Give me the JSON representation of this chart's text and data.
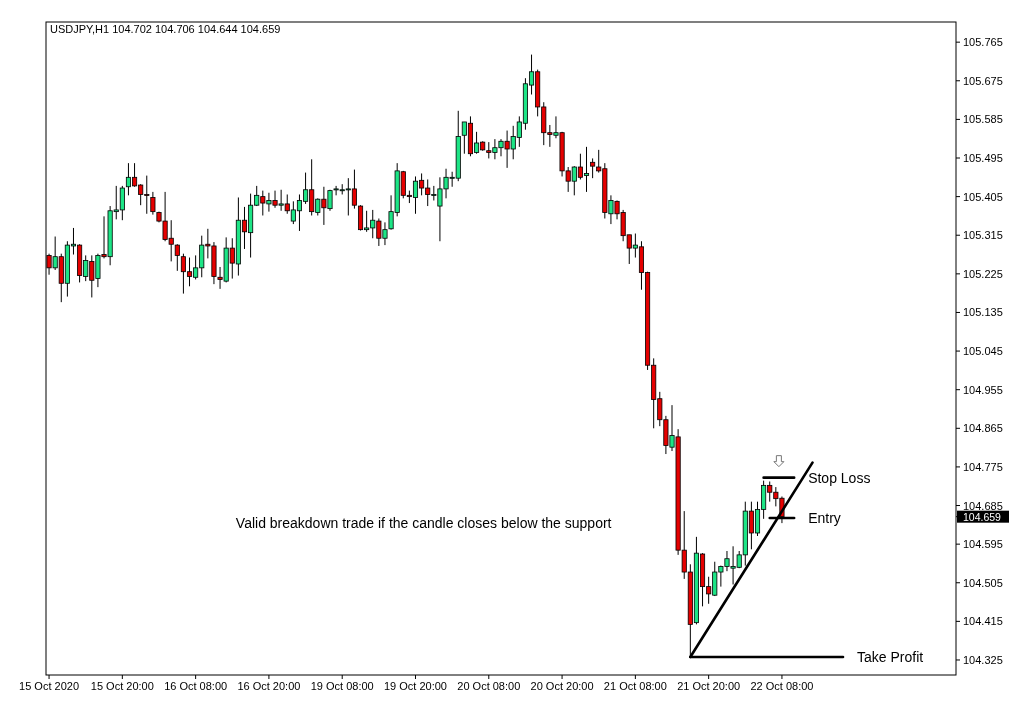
{
  "chart_data": {
    "type": "candlestick",
    "title": "USDJPY,H1 104.702 104.706 104.644 104.659",
    "categories": [
      "15 Oct 2020",
      null,
      null,
      null,
      null,
      null,
      null,
      null,
      null,
      null,
      null,
      null,
      "15 Oct 20:00",
      null,
      null,
      null,
      null,
      null,
      null,
      null,
      null,
      null,
      null,
      null,
      "16 Oct 08:00",
      null,
      null,
      null,
      null,
      null,
      null,
      null,
      null,
      null,
      null,
      null,
      "16 Oct 20:00",
      null,
      null,
      null,
      null,
      null,
      null,
      null,
      null,
      null,
      null,
      null,
      "19 Oct 08:00",
      null,
      null,
      null,
      null,
      null,
      null,
      null,
      null,
      null,
      null,
      null,
      "19 Oct 20:00",
      null,
      null,
      null,
      null,
      null,
      null,
      null,
      null,
      null,
      null,
      null,
      "20 Oct 08:00",
      null,
      null,
      null,
      null,
      null,
      null,
      null,
      null,
      null,
      null,
      null,
      "20 Oct 20:00",
      null,
      null,
      null,
      null,
      null,
      null,
      null,
      null,
      null,
      null,
      null,
      "21 Oct 08:00",
      null,
      null,
      null,
      null,
      null,
      null,
      null,
      null,
      null,
      null,
      null,
      "21 Oct 20:00",
      null,
      null,
      null,
      null,
      null,
      null,
      null,
      null,
      null,
      null,
      null,
      "22 Oct 08:00",
      null,
      null,
      null,
      null,
      null,
      null,
      null,
      null,
      null,
      null,
      null,
      null,
      null,
      null,
      null,
      null,
      null,
      null,
      null,
      null,
      null,
      null,
      null,
      null,
      null,
      null,
      null,
      null
    ],
    "ohlc": [
      [
        105.268,
        105.272,
        105.223,
        105.239
      ],
      [
        105.239,
        105.312,
        105.234,
        105.265
      ],
      [
        105.265,
        105.272,
        105.159,
        105.203
      ],
      [
        105.203,
        105.301,
        105.172,
        105.292
      ],
      [
        105.29,
        105.332,
        105.27,
        105.294
      ],
      [
        105.292,
        105.294,
        105.205,
        105.221
      ],
      [
        105.219,
        105.268,
        105.208,
        105.256
      ],
      [
        105.254,
        105.268,
        105.17,
        105.21
      ],
      [
        105.214,
        105.272,
        105.194,
        105.268
      ],
      [
        105.27,
        105.359,
        105.261,
        105.265
      ],
      [
        105.265,
        105.383,
        105.245,
        105.372
      ],
      [
        105.37,
        105.43,
        105.352,
        105.374
      ],
      [
        105.374,
        105.43,
        105.35,
        105.425
      ],
      [
        105.428,
        105.483,
        105.408,
        105.45
      ],
      [
        105.45,
        105.483,
        105.428,
        105.43
      ],
      [
        105.432,
        105.434,
        105.385,
        105.41
      ],
      [
        105.41,
        105.454,
        105.365,
        105.408
      ],
      [
        105.403,
        105.416,
        105.363,
        105.37
      ],
      [
        105.368,
        105.37,
        105.345,
        105.348
      ],
      [
        105.348,
        105.416,
        105.301,
        105.305
      ],
      [
        105.308,
        105.35,
        105.254,
        105.294
      ],
      [
        105.292,
        105.294,
        105.232,
        105.268
      ],
      [
        105.265,
        105.272,
        105.179,
        105.23
      ],
      [
        105.23,
        105.263,
        105.196,
        105.219
      ],
      [
        105.217,
        105.268,
        105.212,
        105.239
      ],
      [
        105.239,
        105.314,
        105.217,
        105.292
      ],
      [
        105.294,
        105.33,
        105.261,
        105.29
      ],
      [
        105.29,
        105.299,
        105.201,
        105.219
      ],
      [
        105.217,
        105.241,
        105.19,
        105.212
      ],
      [
        105.208,
        105.31,
        105.205,
        105.285
      ],
      [
        105.285,
        105.308,
        105.214,
        105.25
      ],
      [
        105.248,
        105.403,
        105.221,
        105.35
      ],
      [
        105.35,
        105.381,
        105.283,
        105.323
      ],
      [
        105.321,
        105.412,
        105.263,
        105.385
      ],
      [
        105.385,
        105.43,
        105.383,
        105.408
      ],
      [
        105.405,
        105.419,
        105.361,
        105.39
      ],
      [
        105.388,
        105.414,
        105.37,
        105.396
      ],
      [
        105.396,
        105.419,
        105.379,
        105.385
      ],
      [
        105.385,
        105.421,
        105.372,
        105.388
      ],
      [
        105.388,
        105.41,
        105.365,
        105.372
      ],
      [
        105.348,
        105.394,
        105.341,
        105.374
      ],
      [
        105.372,
        105.41,
        105.325,
        105.396
      ],
      [
        105.394,
        105.461,
        105.388,
        105.421
      ],
      [
        105.421,
        105.492,
        105.361,
        105.37
      ],
      [
        105.368,
        105.401,
        105.361,
        105.399
      ],
      [
        105.399,
        105.428,
        105.339,
        105.379
      ],
      [
        105.377,
        105.421,
        105.372,
        105.419
      ],
      [
        105.421,
        105.43,
        105.408,
        105.423
      ],
      [
        105.419,
        105.434,
        105.41,
        105.421
      ],
      [
        105.421,
        105.448,
        105.361,
        105.423
      ],
      [
        105.423,
        105.468,
        105.377,
        105.385
      ],
      [
        105.383,
        105.385,
        105.326,
        105.328
      ],
      [
        105.328,
        105.372,
        105.323,
        105.332
      ],
      [
        105.332,
        105.374,
        105.308,
        105.35
      ],
      [
        105.348,
        105.354,
        105.29,
        105.308
      ],
      [
        105.308,
        105.345,
        105.292,
        105.328
      ],
      [
        105.33,
        105.408,
        105.328,
        105.37
      ],
      [
        105.368,
        105.483,
        105.359,
        105.465
      ],
      [
        105.463,
        105.465,
        105.401,
        105.408
      ],
      [
        105.408,
        105.419,
        105.39,
        105.405
      ],
      [
        105.403,
        105.452,
        105.365,
        105.441
      ],
      [
        105.443,
        105.459,
        105.408,
        105.425
      ],
      [
        105.425,
        105.445,
        105.383,
        105.41
      ],
      [
        105.41,
        105.43,
        105.396,
        105.41
      ],
      [
        105.383,
        105.45,
        105.301,
        105.423
      ],
      [
        105.423,
        105.47,
        105.401,
        105.45
      ],
      [
        105.45,
        105.463,
        105.428,
        105.45
      ],
      [
        105.448,
        105.605,
        105.441,
        105.545
      ],
      [
        105.548,
        105.579,
        105.505,
        105.579
      ],
      [
        105.576,
        105.592,
        105.499,
        105.505
      ],
      [
        105.508,
        105.556,
        105.505,
        105.53
      ],
      [
        105.532,
        105.534,
        105.512,
        105.514
      ],
      [
        105.512,
        105.532,
        105.494,
        105.508
      ],
      [
        105.508,
        105.539,
        105.492,
        105.519
      ],
      [
        105.519,
        105.539,
        105.499,
        105.534
      ],
      [
        105.534,
        105.559,
        105.472,
        105.516
      ],
      [
        105.516,
        105.57,
        105.492,
        105.545
      ],
      [
        105.543,
        105.592,
        105.521,
        105.579
      ],
      [
        105.576,
        105.681,
        105.561,
        105.668
      ],
      [
        105.665,
        105.736,
        105.643,
        105.696
      ],
      [
        105.696,
        105.701,
        105.592,
        105.614
      ],
      [
        105.614,
        105.625,
        105.525,
        105.554
      ],
      [
        105.554,
        105.572,
        105.521,
        105.55
      ],
      [
        105.548,
        105.592,
        105.541,
        105.554
      ],
      [
        105.554,
        105.556,
        105.452,
        105.465
      ],
      [
        105.465,
        105.474,
        105.416,
        105.441
      ],
      [
        105.441,
        105.476,
        105.408,
        105.474
      ],
      [
        105.474,
        105.505,
        105.445,
        105.45
      ],
      [
        105.454,
        105.521,
        105.416,
        105.459
      ],
      [
        105.485,
        105.494,
        105.448,
        105.476
      ],
      [
        105.474,
        105.514,
        105.461,
        105.465
      ],
      [
        105.47,
        105.483,
        105.354,
        105.368
      ],
      [
        105.365,
        105.408,
        105.341,
        105.396
      ],
      [
        105.394,
        105.396,
        105.352,
        105.365
      ],
      [
        105.368,
        105.374,
        105.301,
        105.314
      ],
      [
        105.316,
        105.316,
        105.248,
        105.285
      ],
      [
        105.285,
        105.319,
        105.263,
        105.292
      ],
      [
        105.288,
        105.301,
        105.188,
        105.228
      ],
      [
        105.228,
        105.23,
        105.001,
        105.012
      ],
      [
        105.012,
        105.028,
        104.865,
        104.932
      ],
      [
        104.934,
        104.95,
        104.87,
        104.885
      ],
      [
        104.885,
        104.894,
        104.805,
        104.825
      ],
      [
        104.821,
        104.919,
        104.812,
        104.848
      ],
      [
        104.845,
        104.863,
        104.57,
        104.581
      ],
      [
        104.581,
        104.672,
        104.514,
        104.53
      ],
      [
        104.53,
        104.548,
        104.33,
        104.408
      ],
      [
        104.412,
        104.612,
        104.408,
        104.574
      ],
      [
        104.572,
        104.574,
        104.45,
        104.496
      ],
      [
        104.496,
        104.519,
        104.456,
        104.479
      ],
      [
        104.476,
        104.554,
        104.474,
        104.53
      ],
      [
        104.53,
        104.545,
        104.496,
        104.543
      ],
      [
        104.543,
        104.579,
        104.532,
        104.561
      ],
      [
        104.539,
        104.59,
        104.501,
        104.543
      ],
      [
        104.541,
        104.579,
        104.539,
        104.57
      ],
      [
        104.57,
        104.694,
        104.545,
        104.672
      ],
      [
        104.672,
        104.694,
        104.583,
        104.621
      ],
      [
        104.621,
        104.694,
        104.614,
        104.676
      ],
      [
        104.676,
        104.743,
        104.654,
        104.732
      ],
      [
        104.732,
        104.741,
        104.694,
        104.716
      ],
      [
        104.716,
        104.728,
        104.683,
        104.701
      ],
      [
        104.702,
        104.706,
        104.644,
        104.659
      ],
      null,
      null,
      null,
      null,
      null,
      null,
      null,
      null,
      null,
      null,
      null,
      null,
      null,
      null,
      null,
      null,
      null,
      null,
      null,
      null,
      null,
      null,
      null,
      null,
      null,
      null,
      null,
      null
    ],
    "colors": [
      "#e50000",
      "#1de586",
      "#e50000",
      "#1de586",
      "#1de586",
      "#e50000",
      "#1de586",
      "#e50000",
      "#1de586",
      "#e50000",
      "#1de586",
      "#1de586",
      "#1de586",
      "#1de586",
      "#e50000",
      "#e50000",
      "#e50000",
      "#e50000",
      "#e50000",
      "#e50000",
      "#e50000",
      "#e50000",
      "#e50000",
      "#e50000",
      "#1de586",
      "#1de586",
      "#e50000",
      "#e50000",
      "#e50000",
      "#1de586",
      "#e50000",
      "#1de586",
      "#e50000",
      "#1de586",
      "#1de586",
      "#e50000",
      "#1de586",
      "#e50000",
      "#1de586",
      "#e50000",
      "#1de586",
      "#1de586",
      "#1de586",
      "#e50000",
      "#1de586",
      "#e50000",
      "#1de586",
      "#1de586",
      "#1de586",
      "#1de586",
      "#e50000",
      "#e50000",
      "#1de586",
      "#1de586",
      "#e50000",
      "#1de586",
      "#1de586",
      "#1de586",
      "#e50000",
      "#e50000",
      "#1de586",
      "#e50000",
      "#e50000",
      "#1de586",
      "#1de586",
      "#1de586",
      "#1de586",
      "#1de586",
      "#1de586",
      "#e50000",
      "#1de586",
      "#e50000",
      "#e50000",
      "#1de586",
      "#1de586",
      "#e50000",
      "#1de586",
      "#1de586",
      "#1de586",
      "#1de586",
      "#e50000",
      "#e50000",
      "#e50000",
      "#1de586",
      "#e50000",
      "#e50000",
      "#1de586",
      "#e50000",
      "#1de586",
      "#e50000",
      "#e50000",
      "#e50000",
      "#1de586",
      "#e50000",
      "#e50000",
      "#e50000",
      "#1de586",
      "#e50000",
      "#e50000",
      "#e50000",
      "#e50000",
      "#e50000",
      "#1de586",
      "#e50000",
      "#e50000",
      "#e50000",
      "#1de586",
      "#e50000",
      "#e50000",
      "#1de586",
      "#1de586",
      "#1de586",
      "#1de586",
      "#1de586",
      "#1de586",
      "#e50000",
      "#1de586",
      "#1de586",
      "#e50000",
      "#e50000",
      "#e50000",
      null,
      null,
      null,
      null,
      null,
      null,
      null,
      null,
      null,
      null,
      null,
      null,
      null,
      null,
      null,
      null,
      null,
      null,
      null,
      null,
      null,
      null,
      null,
      null,
      null,
      null,
      null,
      null
    ],
    "ylim": [
      104.29,
      105.812
    ],
    "yticks": [
      105.765,
      105.675,
      105.585,
      105.495,
      105.405,
      105.315,
      105.225,
      105.135,
      105.045,
      104.955,
      104.865,
      104.775,
      104.685,
      {
        "value": 104.659,
        "label": "104.659"
      },
      104.595,
      104.505,
      104.415,
      104.325
    ],
    "series": [
      {
        "type": "line",
        "color": "#000000",
        "values": [
          null,
          null,
          null,
          null,
          null,
          null,
          null,
          null,
          null,
          null,
          null,
          null,
          null,
          null,
          null,
          null,
          null,
          null,
          null,
          null,
          null,
          null,
          null,
          null,
          null,
          null,
          null,
          null,
          null,
          null,
          null,
          null,
          null,
          null,
          null,
          null,
          null,
          null,
          null,
          null,
          null,
          null,
          null,
          null,
          null,
          null,
          null,
          null,
          null,
          null,
          null,
          null,
          null,
          null,
          null,
          null,
          null,
          null,
          null,
          null,
          null,
          null,
          null,
          null,
          null,
          null,
          null,
          null,
          null,
          null,
          null,
          null,
          null,
          null,
          null,
          null,
          null,
          null,
          null,
          null,
          null,
          null,
          null,
          null,
          null,
          null,
          null,
          null,
          null,
          null,
          null,
          null,
          null,
          null,
          null,
          null,
          null,
          null,
          null,
          null,
          null,
          null,
          null,
          null,
          null,
          104.332,
          null,
          null,
          null,
          null,
          null,
          null,
          null,
          null,
          null,
          null,
          null,
          null,
          null,
          null,
          null,
          null,
          null,
          null,
          null,
          104.785,
          null,
          null,
          null,
          null,
          null,
          null,
          null,
          null,
          null,
          null,
          null,
          null,
          null,
          null,
          null,
          null,
          null,
          null,
          null,
          null,
          null,
          null,
          null
        ]
      },
      {
        "type": "line",
        "name": "Stop Loss",
        "color": "#000000",
        "values": [
          null,
          null,
          null,
          null,
          null,
          null,
          null,
          null,
          null,
          null,
          null,
          null,
          null,
          null,
          null,
          null,
          null,
          null,
          null,
          null,
          null,
          null,
          null,
          null,
          null,
          null,
          null,
          null,
          null,
          null,
          null,
          null,
          null,
          null,
          null,
          null,
          null,
          null,
          null,
          null,
          null,
          null,
          null,
          null,
          null,
          null,
          null,
          null,
          null,
          null,
          null,
          null,
          null,
          null,
          null,
          null,
          null,
          null,
          null,
          null,
          null,
          null,
          null,
          null,
          null,
          null,
          null,
          null,
          null,
          null,
          null,
          null,
          null,
          null,
          null,
          null,
          null,
          null,
          null,
          null,
          null,
          null,
          null,
          null,
          null,
          null,
          null,
          null,
          null,
          null,
          null,
          null,
          null,
          null,
          null,
          null,
          null,
          null,
          null,
          null,
          null,
          null,
          null,
          null,
          null,
          null,
          null,
          null,
          null,
          null,
          null,
          null,
          null,
          null,
          null,
          null,
          null,
          104.75,
          null,
          null,
          null,
          null,
          104.75,
          null,
          null,
          null,
          null,
          null,
          null,
          null,
          null,
          null,
          null,
          null,
          null,
          null,
          null,
          null,
          null,
          null,
          null,
          null,
          null,
          null,
          null,
          null,
          null,
          null,
          null
        ]
      },
      {
        "type": "line",
        "name": "Entry",
        "color": "#000000",
        "values": [
          null,
          null,
          null,
          null,
          null,
          null,
          null,
          null,
          null,
          null,
          null,
          null,
          null,
          null,
          null,
          null,
          null,
          null,
          null,
          null,
          null,
          null,
          null,
          null,
          null,
          null,
          null,
          null,
          null,
          null,
          null,
          null,
          null,
          null,
          null,
          null,
          null,
          null,
          null,
          null,
          null,
          null,
          null,
          null,
          null,
          null,
          null,
          null,
          null,
          null,
          null,
          null,
          null,
          null,
          null,
          null,
          null,
          null,
          null,
          null,
          null,
          null,
          null,
          null,
          null,
          null,
          null,
          null,
          null,
          null,
          null,
          null,
          null,
          null,
          null,
          null,
          null,
          null,
          null,
          null,
          null,
          null,
          null,
          null,
          null,
          null,
          null,
          null,
          null,
          null,
          null,
          null,
          null,
          null,
          null,
          null,
          null,
          null,
          null,
          null,
          null,
          null,
          null,
          null,
          null,
          null,
          null,
          null,
          null,
          null,
          null,
          null,
          null,
          null,
          null,
          null,
          null,
          null,
          104.656,
          null,
          null,
          null,
          104.656,
          null,
          null,
          null,
          null,
          null,
          null,
          null,
          null,
          null,
          null,
          null,
          null,
          null,
          null,
          null,
          null,
          null,
          null,
          null,
          null,
          null,
          null,
          null,
          null,
          null,
          null
        ]
      },
      {
        "type": "line",
        "name": "Take Profit",
        "color": "#000000",
        "values": [
          null,
          null,
          null,
          null,
          null,
          null,
          null,
          null,
          null,
          null,
          null,
          null,
          null,
          null,
          null,
          null,
          null,
          null,
          null,
          null,
          null,
          null,
          null,
          null,
          null,
          null,
          null,
          null,
          null,
          null,
          null,
          null,
          null,
          null,
          null,
          null,
          null,
          null,
          null,
          null,
          null,
          null,
          null,
          null,
          null,
          null,
          null,
          null,
          null,
          null,
          null,
          null,
          null,
          null,
          null,
          null,
          null,
          null,
          null,
          null,
          null,
          null,
          null,
          null,
          null,
          null,
          null,
          null,
          null,
          null,
          null,
          null,
          null,
          null,
          null,
          null,
          null,
          null,
          null,
          null,
          null,
          null,
          null,
          null,
          null,
          null,
          null,
          null,
          null,
          null,
          null,
          null,
          null,
          null,
          null,
          null,
          null,
          null,
          null,
          null,
          null,
          null,
          null,
          null,
          null,
          104.332,
          null,
          null,
          null,
          null,
          null,
          null,
          null,
          null,
          null,
          null,
          null,
          null,
          null,
          null,
          null,
          null,
          null,
          null,
          null,
          null,
          null,
          null,
          null,
          null,
          104.332,
          null,
          null,
          null,
          null,
          null,
          null,
          null,
          null,
          null,
          null,
          null,
          null,
          null,
          null,
          null,
          null,
          null,
          null
        ]
      }
    ],
    "annotations": [
      "Valid breakdown trade if the candle closes below the support"
    ]
  }
}
